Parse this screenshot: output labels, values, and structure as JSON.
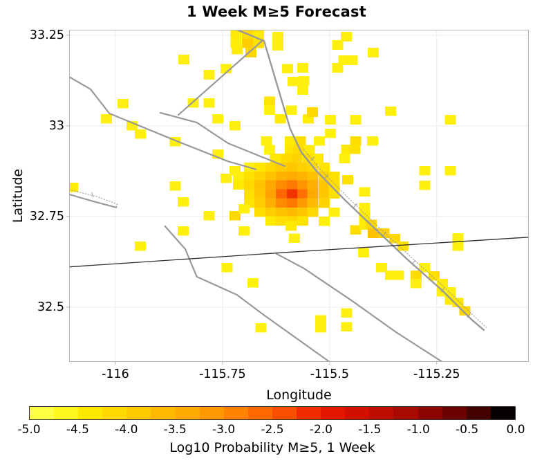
{
  "title": "1 Week M≥5 Forecast",
  "axes": {
    "xlabel": "Longitude",
    "ylabel": "Latitude",
    "xlim": [
      -116.108,
      -115.035
    ],
    "ylim": [
      32.349,
      33.265
    ],
    "xticks": [
      {
        "v": -116.0,
        "label": "-116"
      },
      {
        "v": -115.75,
        "label": "-115.75"
      },
      {
        "v": -115.5,
        "label": "-115.5"
      },
      {
        "v": -115.25,
        "label": "-115.25"
      }
    ],
    "yticks": [
      {
        "v": 33.25,
        "label": "33.25"
      },
      {
        "v": 33.0,
        "label": "33"
      },
      {
        "v": 32.75,
        "label": "32.75"
      },
      {
        "v": 32.5,
        "label": "32.5"
      }
    ],
    "grid": true
  },
  "colorbar": {
    "label": "Log10 Probability M≥5, 1 Week",
    "range": [
      -5,
      0
    ],
    "tick_labels": [
      "-5.0",
      "-4.5",
      "-4.0",
      "-3.5",
      "-3.0",
      "-2.5",
      "-2.0",
      "-1.5",
      "-1.0",
      "-0.5",
      "0.0"
    ],
    "segment_colors": [
      "#ffff44",
      "#fff71e",
      "#ffe800",
      "#ffd900",
      "#ffca00",
      "#ffba00",
      "#ffaa00",
      "#ff9800",
      "#ff8200",
      "#ff6a00",
      "#fb4f00",
      "#f02c00",
      "#e31700",
      "#d21000",
      "#bf0c00",
      "#a80900",
      "#8d0500",
      "#6b0300",
      "#430100",
      "#060000"
    ]
  },
  "chart_data": {
    "type": "heatmap",
    "title": "1 Week M≥5 Forecast",
    "xlabel": "Longitude",
    "ylabel": "Latitude",
    "value_label": "Log10 Probability M≥5, 1 Week",
    "value_range": [
      -5,
      0
    ],
    "cell_size_deg": 0.025,
    "xlim": [
      -116.108,
      -115.035
    ],
    "ylim": [
      32.349,
      33.265
    ],
    "cells": [
      [
        -115.718,
        33.252,
        -4.5
      ],
      [
        -115.692,
        33.252,
        -4.25
      ],
      [
        -115.666,
        33.252,
        -4.5
      ],
      [
        -115.621,
        33.246,
        -4.6
      ],
      [
        -115.718,
        33.227,
        -4.55
      ],
      [
        -115.692,
        33.227,
        -4.0
      ],
      [
        -115.666,
        33.227,
        -4.35
      ],
      [
        -115.716,
        33.21,
        -4.55
      ],
      [
        -115.684,
        33.202,
        -4.2
      ],
      [
        -115.621,
        33.221,
        -4.6
      ],
      [
        -115.84,
        33.183,
        -4.6
      ],
      [
        -115.598,
        33.158,
        -4.6
      ],
      [
        -115.563,
        33.16,
        -4.6
      ],
      [
        -115.585,
        33.122,
        -4.6
      ],
      [
        -115.56,
        33.124,
        -4.6
      ],
      [
        -115.742,
        33.158,
        -4.6
      ],
      [
        -115.781,
        33.141,
        -4.6
      ],
      [
        -115.481,
        33.223,
        -4.6
      ],
      [
        -115.461,
        33.246,
        -4.6
      ],
      [
        -115.398,
        33.202,
        -4.6
      ],
      [
        -115.467,
        33.181,
        -4.6
      ],
      [
        -115.447,
        33.181,
        -4.6
      ],
      [
        -115.481,
        33.16,
        -4.6
      ],
      [
        -115.982,
        33.061,
        -4.6
      ],
      [
        -116.021,
        33.019,
        -4.6
      ],
      [
        -115.961,
        33.0,
        -4.6
      ],
      [
        -115.942,
        32.977,
        -4.6
      ],
      [
        -115.86,
        32.956,
        -4.6
      ],
      [
        -115.818,
        33.063,
        -4.6
      ],
      [
        -115.781,
        33.063,
        -4.6
      ],
      [
        -115.761,
        33.019,
        -4.6
      ],
      [
        -115.721,
        33.0,
        -4.6
      ],
      [
        -115.64,
        33.068,
        -4.4
      ],
      [
        -115.64,
        33.043,
        -4.6
      ],
      [
        -115.615,
        33.019,
        -4.5
      ],
      [
        -115.589,
        33.043,
        -4.6
      ],
      [
        -115.563,
        33.099,
        -4.6
      ],
      [
        -115.55,
        33.019,
        -4.55
      ],
      [
        -115.54,
        33.038,
        -4.2
      ],
      [
        -115.498,
        33.017,
        -4.6
      ],
      [
        -115.439,
        33.017,
        -4.6
      ],
      [
        -115.358,
        33.04,
        -4.6
      ],
      [
        -115.218,
        33.017,
        -4.6
      ],
      [
        -115.498,
        32.979,
        -4.6
      ],
      [
        -115.439,
        32.958,
        -4.3
      ],
      [
        -115.4,
        32.958,
        -4.6
      ],
      [
        -115.46,
        32.935,
        -4.5
      ],
      [
        -115.441,
        32.935,
        -4.35
      ],
      [
        -115.761,
        32.922,
        -4.6
      ],
      [
        -115.721,
        32.876,
        -4.6
      ],
      [
        -115.708,
        32.86,
        -4.4
      ],
      [
        -115.742,
        32.855,
        -4.6
      ],
      [
        -115.86,
        32.834,
        -4.6
      ],
      [
        -116.1,
        32.83,
        -4.55
      ],
      [
        -115.647,
        32.958,
        -4.6
      ],
      [
        -115.592,
        32.958,
        -4.5
      ],
      [
        -115.568,
        32.958,
        -4.3
      ],
      [
        -115.524,
        32.958,
        -4.6
      ],
      [
        -115.64,
        32.934,
        -4.6
      ],
      [
        -115.592,
        32.934,
        -4.4
      ],
      [
        -115.571,
        32.934,
        -4.25
      ],
      [
        -115.547,
        32.934,
        -4.5
      ],
      [
        -115.626,
        32.91,
        -4.45
      ],
      [
        -115.601,
        32.91,
        -4.25
      ],
      [
        -115.576,
        32.91,
        -4.1
      ],
      [
        -115.55,
        32.91,
        -4.3
      ],
      [
        -115.527,
        32.91,
        -4.5
      ],
      [
        -115.465,
        32.91,
        -4.6
      ],
      [
        -115.687,
        32.886,
        -4.6
      ],
      [
        -115.663,
        32.886,
        -4.45
      ],
      [
        -115.637,
        32.886,
        -4.2
      ],
      [
        -115.613,
        32.886,
        -4.0
      ],
      [
        -115.587,
        32.886,
        -3.9
      ],
      [
        -115.563,
        32.886,
        -4.05
      ],
      [
        -115.539,
        32.886,
        -4.2
      ],
      [
        -115.513,
        32.886,
        -4.4
      ],
      [
        -115.713,
        32.861,
        -4.6
      ],
      [
        -115.687,
        32.861,
        -4.35
      ],
      [
        -115.663,
        32.861,
        -4.1
      ],
      [
        -115.637,
        32.861,
        -3.8
      ],
      [
        -115.613,
        32.861,
        -3.55
      ],
      [
        -115.587,
        32.861,
        -3.45
      ],
      [
        -115.563,
        32.861,
        -3.6
      ],
      [
        -115.539,
        32.861,
        -3.8
      ],
      [
        -115.513,
        32.861,
        -4.1
      ],
      [
        -115.489,
        32.861,
        -4.35
      ],
      [
        -115.458,
        32.851,
        -4.35
      ],
      [
        -115.713,
        32.837,
        -4.5
      ],
      [
        -115.687,
        32.837,
        -4.2
      ],
      [
        -115.663,
        32.837,
        -3.8
      ],
      [
        -115.637,
        32.837,
        -3.4
      ],
      [
        -115.613,
        32.837,
        -3.0
      ],
      [
        -115.587,
        32.837,
        -2.8
      ],
      [
        -115.563,
        32.837,
        -3.1
      ],
      [
        -115.539,
        32.837,
        -3.5
      ],
      [
        -115.513,
        32.837,
        -3.9
      ],
      [
        -115.489,
        32.837,
        -4.3
      ],
      [
        -115.687,
        32.812,
        -4.3
      ],
      [
        -115.663,
        32.812,
        -3.9
      ],
      [
        -115.637,
        32.812,
        -3.3
      ],
      [
        -115.613,
        32.812,
        -2.6
      ],
      [
        -115.587,
        32.812,
        -2.15
      ],
      [
        -115.563,
        32.812,
        -2.7
      ],
      [
        -115.539,
        32.812,
        -3.4
      ],
      [
        -115.513,
        32.812,
        -3.9
      ],
      [
        -115.489,
        32.812,
        -4.35
      ],
      [
        -115.687,
        32.787,
        -4.4
      ],
      [
        -115.663,
        32.787,
        -4.0
      ],
      [
        -115.637,
        32.787,
        -3.5
      ],
      [
        -115.613,
        32.787,
        -3.0
      ],
      [
        -115.587,
        32.787,
        -2.8
      ],
      [
        -115.563,
        32.787,
        -3.2
      ],
      [
        -115.539,
        32.787,
        -3.7
      ],
      [
        -115.513,
        32.787,
        -4.1
      ],
      [
        -115.663,
        32.762,
        -4.3
      ],
      [
        -115.637,
        32.762,
        -4.0
      ],
      [
        -115.613,
        32.762,
        -3.8
      ],
      [
        -115.587,
        32.762,
        -3.7
      ],
      [
        -115.563,
        32.762,
        -3.9
      ],
      [
        -115.539,
        32.762,
        -4.2
      ],
      [
        -115.489,
        32.762,
        -4.6
      ],
      [
        -115.637,
        32.738,
        -4.5
      ],
      [
        -115.613,
        32.738,
        -4.3
      ],
      [
        -115.587,
        32.738,
        -4.2
      ],
      [
        -115.563,
        32.738,
        -4.4
      ],
      [
        -115.513,
        32.737,
        -4.6
      ],
      [
        -115.59,
        32.724,
        -4.5
      ],
      [
        -115.582,
        32.69,
        -4.6
      ],
      [
        -115.439,
        32.713,
        -4.3
      ],
      [
        -115.418,
        32.775,
        -4.6
      ],
      [
        -115.418,
        32.751,
        -4.5
      ],
      [
        -115.418,
        32.726,
        -4.55
      ],
      [
        -115.403,
        32.728,
        -4.2
      ],
      [
        -115.398,
        32.704,
        -3.8
      ],
      [
        -115.373,
        32.704,
        -4.1
      ],
      [
        -115.348,
        32.689,
        -4.2
      ],
      [
        -115.329,
        32.668,
        -4.4
      ],
      [
        -115.298,
        32.588,
        -4.25
      ],
      [
        -115.298,
        32.565,
        -4.6
      ],
      [
        -115.256,
        32.586,
        -4.3
      ],
      [
        -115.237,
        32.565,
        -4.55
      ],
      [
        -115.237,
        32.542,
        -4.6
      ],
      [
        -115.218,
        32.542,
        -4.6
      ],
      [
        -115.218,
        32.519,
        -4.5
      ],
      [
        -115.2,
        32.513,
        -4.45
      ],
      [
        -115.184,
        32.49,
        -4.15
      ],
      [
        -115.278,
        32.876,
        -4.6
      ],
      [
        -115.218,
        32.876,
        -4.6
      ],
      [
        -115.278,
        32.836,
        -4.6
      ],
      [
        -115.418,
        32.818,
        -4.6
      ],
      [
        -115.2,
        32.691,
        -4.6
      ],
      [
        -115.2,
        32.668,
        -4.6
      ],
      [
        -115.842,
        32.79,
        -4.6
      ],
      [
        -115.781,
        32.752,
        -4.6
      ],
      [
        -115.721,
        32.752,
        -4.2
      ],
      [
        -115.7,
        32.771,
        -4.6
      ],
      [
        -115.7,
        32.71,
        -4.6
      ],
      [
        -115.842,
        32.71,
        -4.6
      ],
      [
        -115.942,
        32.668,
        -4.6
      ],
      [
        -115.739,
        32.609,
        -4.6
      ],
      [
        -115.679,
        32.567,
        -4.6
      ],
      [
        -115.66,
        32.443,
        -4.6
      ],
      [
        -115.421,
        32.65,
        -4.6
      ],
      [
        -115.379,
        32.609,
        -4.6
      ],
      [
        -115.358,
        32.588,
        -4.6
      ],
      [
        -115.339,
        32.588,
        -4.6
      ],
      [
        -115.278,
        32.609,
        -4.6
      ],
      [
        -115.46,
        32.484,
        -4.6
      ],
      [
        -115.521,
        32.465,
        -4.6
      ],
      [
        -115.521,
        32.443,
        -4.6
      ],
      [
        -115.46,
        32.446,
        -4.6
      ]
    ]
  },
  "map_layers": {
    "fault_color": "#999999",
    "gridline_color": "#ebebeb",
    "frame_color": "#b3b3b3",
    "faults": [
      {
        "name": "northwest-fault-long",
        "style": "solid",
        "width": 2.2,
        "points": [
          [
            -116.108,
            33.135
          ],
          [
            -116.058,
            33.101
          ],
          [
            -116.014,
            33.034
          ],
          [
            -115.861,
            32.96
          ],
          [
            -115.737,
            32.902
          ],
          [
            -115.672,
            32.88
          ]
        ]
      },
      {
        "name": "northwest-fault-short",
        "style": "solid",
        "width": 2.2,
        "points": [
          [
            -115.895,
            33.036
          ],
          [
            -115.81,
            33.009
          ],
          [
            -115.737,
            32.952
          ],
          [
            -115.605,
            32.889
          ]
        ]
      },
      {
        "name": "northeast-cross-fault",
        "style": "solid",
        "width": 2.2,
        "points": [
          [
            -115.656,
            33.236
          ],
          [
            -115.853,
            33.03
          ]
        ]
      },
      {
        "name": "main-diagonal-fault",
        "style": "solid",
        "width": 2.4,
        "points": [
          [
            -115.716,
            33.265
          ],
          [
            -115.653,
            33.234
          ],
          [
            -115.621,
            33.107
          ],
          [
            -115.592,
            32.992
          ],
          [
            -115.566,
            32.927
          ],
          [
            -115.531,
            32.876
          ],
          [
            -115.463,
            32.794
          ],
          [
            -115.39,
            32.712
          ],
          [
            -115.318,
            32.631
          ],
          [
            -115.237,
            32.546
          ],
          [
            -115.168,
            32.465
          ],
          [
            -115.14,
            32.437
          ]
        ]
      },
      {
        "name": "main-diagonal-fault-companion",
        "style": "dotted",
        "width": 1,
        "points": [
          [
            -115.56,
            32.935
          ],
          [
            -115.524,
            32.883
          ],
          [
            -115.456,
            32.801
          ],
          [
            -115.384,
            32.719
          ],
          [
            -115.311,
            32.639
          ],
          [
            -115.23,
            32.553
          ],
          [
            -115.161,
            32.473
          ],
          [
            -115.134,
            32.444
          ]
        ]
      },
      {
        "name": "west-edge-fault",
        "style": "solid",
        "width": 2.2,
        "points": [
          [
            -116.108,
            32.811
          ],
          [
            -116.052,
            32.792
          ],
          [
            -115.998,
            32.775
          ]
        ]
      },
      {
        "name": "west-edge-fault-companion",
        "style": "dotted",
        "width": 1,
        "points": [
          [
            -116.108,
            32.824
          ],
          [
            -116.044,
            32.805
          ],
          [
            -115.995,
            32.784
          ],
          [
            -115.998,
            32.775
          ]
        ]
      },
      {
        "name": "south-curve-west",
        "style": "solid",
        "width": 2.2,
        "points": [
          [
            -115.884,
            32.723
          ],
          [
            -115.837,
            32.66
          ],
          [
            -115.81,
            32.584
          ],
          [
            -115.716,
            32.534
          ],
          [
            -115.652,
            32.477
          ],
          [
            -115.5,
            32.349
          ]
        ]
      },
      {
        "name": "south-curve-east",
        "style": "solid",
        "width": 2.2,
        "points": [
          [
            -115.624,
            32.647
          ],
          [
            -115.56,
            32.607
          ],
          [
            -115.452,
            32.521
          ],
          [
            -115.345,
            32.431
          ],
          [
            -115.237,
            32.349
          ]
        ]
      }
    ],
    "fault_tick_marks": [
      [
        [
          -115.544,
          32.904
        ],
        [
          -115.535,
          32.915
        ]
      ],
      [
        [
          -115.511,
          32.855
        ],
        [
          -115.503,
          32.866
        ]
      ],
      [
        [
          -115.444,
          32.775
        ],
        [
          -115.435,
          32.786
        ]
      ],
      [
        [
          -115.376,
          32.696
        ],
        [
          -115.368,
          32.708
        ]
      ],
      [
        [
          -115.308,
          32.618
        ],
        [
          -115.3,
          32.63
        ]
      ],
      [
        [
          -115.24,
          32.542
        ],
        [
          -115.232,
          32.553
        ]
      ],
      [
        [
          -115.179,
          32.471
        ],
        [
          -115.171,
          32.483
        ]
      ],
      [
        [
          -116.055,
          32.817
        ],
        [
          -116.052,
          32.803
        ]
      ]
    ],
    "border_line": {
      "name": "international-border",
      "color": "#2f2f2f",
      "width": 1.3,
      "points": [
        [
          -116.108,
          32.611
        ],
        [
          -115.576,
          32.653
        ],
        [
          -115.032,
          32.693
        ]
      ]
    }
  }
}
